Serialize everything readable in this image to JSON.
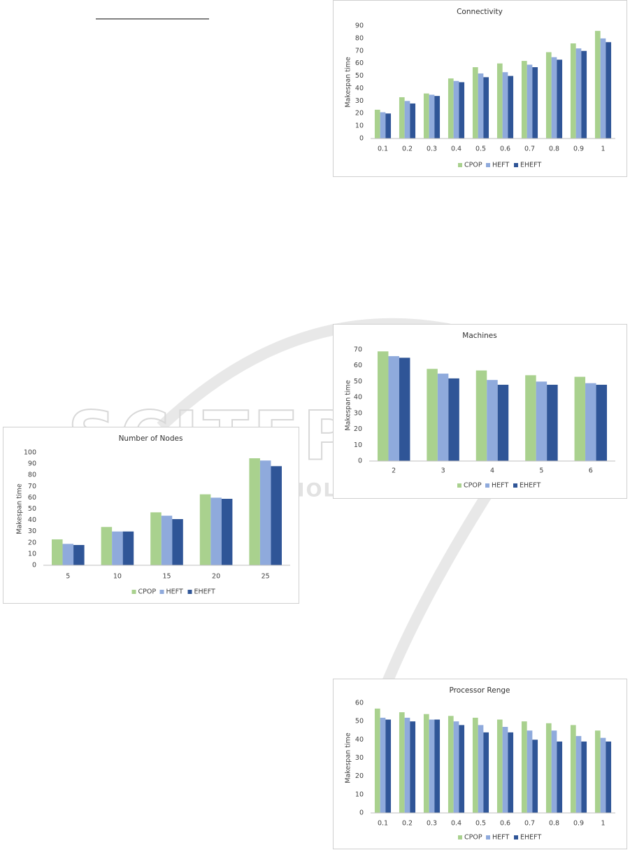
{
  "watermark": {
    "line1": "SCITEPRESS",
    "line2": "SCIENCE AND TECHNOLOGY PUBLICATIONS"
  },
  "chart_data": [
    {
      "type": "bar",
      "title": "Connectivity",
      "y_label": "Makespan time",
      "categories": [
        "0.1",
        "0.2",
        "0.3",
        "0.4",
        "0.5",
        "0.6",
        "0.7",
        "0.8",
        "0.9",
        "1"
      ],
      "series": [
        {
          "name": "CPOP",
          "color": "#a9d18e",
          "values": [
            23,
            33,
            36,
            48,
            57,
            60,
            62,
            69,
            76,
            86
          ]
        },
        {
          "name": "HEFT",
          "color": "#8faadc",
          "values": [
            21,
            30,
            35,
            46,
            52,
            53,
            59,
            65,
            72,
            80
          ]
        },
        {
          "name": "EHEFT",
          "color": "#2f5597",
          "values": [
            20,
            28,
            34,
            45,
            49,
            50,
            57,
            63,
            70,
            77
          ]
        }
      ],
      "ylim": [
        0,
        90
      ],
      "yticks": [
        0,
        10,
        20,
        30,
        40,
        50,
        60,
        70,
        80,
        90
      ],
      "grid": false,
      "legend": "bottom"
    },
    {
      "type": "bar",
      "title": "Machines",
      "y_label": "Makespan time",
      "categories": [
        "2",
        "3",
        "4",
        "5",
        "6"
      ],
      "series": [
        {
          "name": "CPOP",
          "color": "#a9d18e",
          "values": [
            69,
            58,
            57,
            54,
            53
          ]
        },
        {
          "name": "HEFT",
          "color": "#8faadc",
          "values": [
            66,
            55,
            51,
            50,
            49
          ]
        },
        {
          "name": "EHEFT",
          "color": "#2f5597",
          "values": [
            65,
            52,
            48,
            48,
            48
          ]
        }
      ],
      "ylim": [
        0,
        70
      ],
      "yticks": [
        0,
        10,
        20,
        30,
        40,
        50,
        60,
        70
      ],
      "grid": false,
      "legend": "bottom"
    },
    {
      "type": "bar",
      "title": "Number of Nodes",
      "y_label": "Makespan time",
      "categories": [
        "5",
        "10",
        "15",
        "20",
        "25"
      ],
      "series": [
        {
          "name": "CPOP",
          "color": "#a9d18e",
          "values": [
            23,
            34,
            47,
            63,
            95
          ]
        },
        {
          "name": "HEFT",
          "color": "#8faadc",
          "values": [
            19,
            30,
            44,
            60,
            93
          ]
        },
        {
          "name": "EHEFT",
          "color": "#2f5597",
          "values": [
            18,
            30,
            41,
            59,
            88
          ]
        }
      ],
      "ylim": [
        0,
        100
      ],
      "yticks": [
        0,
        10,
        20,
        30,
        40,
        50,
        60,
        70,
        80,
        90,
        100
      ],
      "grid": false,
      "legend": "bottom"
    },
    {
      "type": "bar",
      "title": "Processor Renge",
      "y_label": "Makespan time",
      "categories": [
        "0.1",
        "0.2",
        "0.3",
        "0.4",
        "0.5",
        "0.6",
        "0.7",
        "0.8",
        "0.9",
        "1"
      ],
      "series": [
        {
          "name": "CPOP",
          "color": "#a9d18e",
          "values": [
            57,
            55,
            54,
            53,
            52,
            51,
            50,
            49,
            48,
            45
          ]
        },
        {
          "name": "HEFT",
          "color": "#8faadc",
          "values": [
            52,
            52,
            51,
            50,
            48,
            47,
            45,
            45,
            42,
            41
          ]
        },
        {
          "name": "EHEFT",
          "color": "#2f5597",
          "values": [
            51,
            50,
            51,
            48,
            44,
            44,
            40,
            39,
            39,
            39
          ]
        }
      ],
      "ylim": [
        0,
        60
      ],
      "yticks": [
        0,
        10,
        20,
        30,
        40,
        50,
        60
      ],
      "grid": false,
      "legend": "bottom"
    }
  ]
}
